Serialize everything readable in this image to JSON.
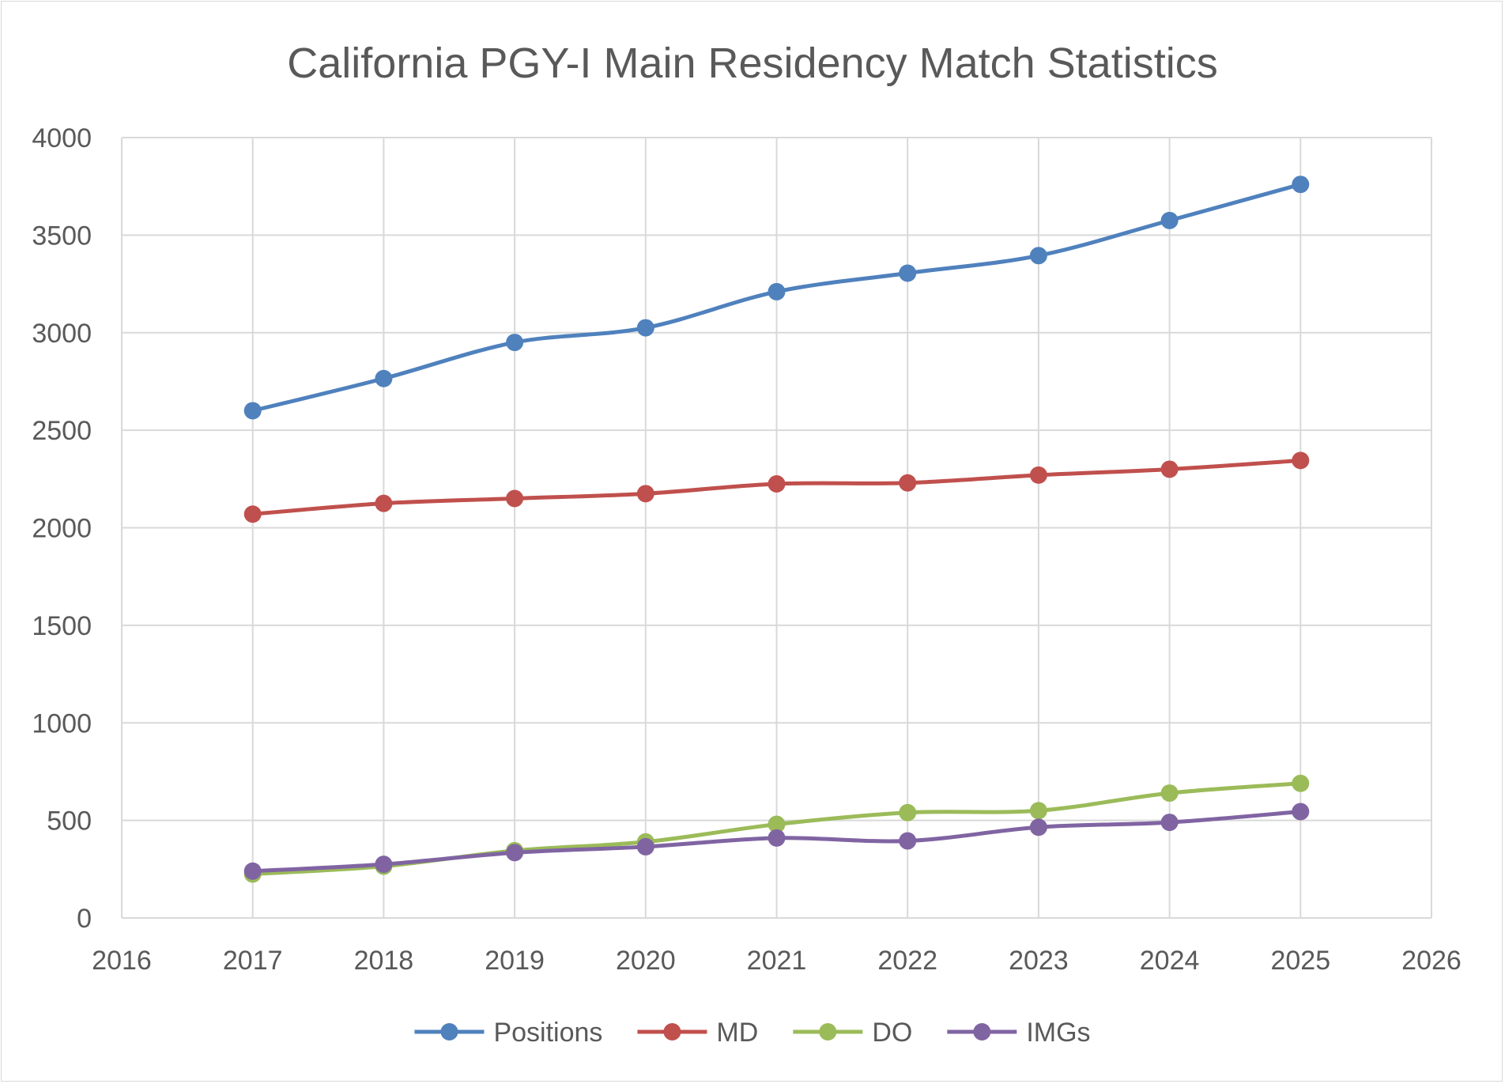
{
  "chart_data": {
    "type": "scatter",
    "title": "California PGY-I Main Residency Match Statistics",
    "xlabel": "",
    "ylabel": "",
    "xlim": [
      2016,
      2026
    ],
    "ylim": [
      0,
      4000
    ],
    "x_ticks": [
      2016,
      2017,
      2018,
      2019,
      2020,
      2021,
      2022,
      2023,
      2024,
      2025,
      2026
    ],
    "y_ticks": [
      0,
      500,
      1000,
      1500,
      2000,
      2500,
      3000,
      3500,
      4000
    ],
    "grid": true,
    "legend_position": "bottom",
    "x": [
      2017,
      2018,
      2019,
      2020,
      2021,
      2022,
      2023,
      2024,
      2025
    ],
    "series": [
      {
        "name": "Positions",
        "color": "#4f81bd",
        "values": [
          2600,
          2765,
          2950,
          3025,
          3210,
          3305,
          3395,
          3575,
          3760
        ]
      },
      {
        "name": "MD",
        "color": "#c0504d",
        "values": [
          2070,
          2125,
          2150,
          2175,
          2225,
          2230,
          2270,
          2300,
          2345
        ]
      },
      {
        "name": "DO",
        "color": "#9bbb59",
        "values": [
          225,
          265,
          345,
          390,
          480,
          540,
          550,
          640,
          690
        ]
      },
      {
        "name": "IMGs",
        "color": "#8064a2",
        "values": [
          240,
          275,
          335,
          365,
          410,
          395,
          465,
          490,
          545
        ]
      }
    ]
  }
}
